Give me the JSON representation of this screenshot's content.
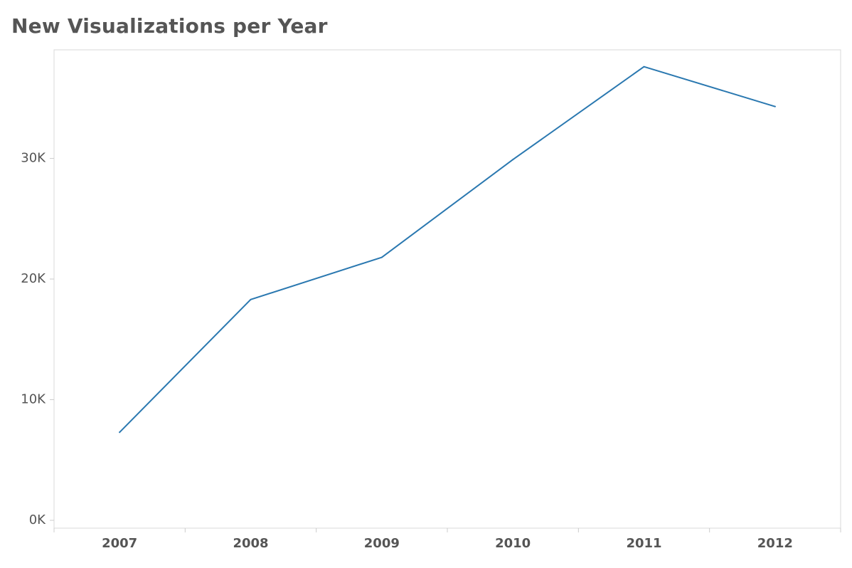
{
  "chart_data": {
    "type": "line",
    "title": "New Visualizations per Year",
    "xlabel": "",
    "ylabel": "",
    "categories": [
      "2007",
      "2008",
      "2009",
      "2010",
      "2011",
      "2012"
    ],
    "values": [
      7300,
      18300,
      21800,
      29900,
      37600,
      34300
    ],
    "ylim": [
      0,
      39000
    ],
    "yticks": [
      0,
      10000,
      20000,
      30000
    ],
    "ytick_labels": [
      "0K",
      "10K",
      "20K",
      "30K"
    ],
    "grid": false,
    "legend": "none",
    "series_color": "#2a78b0"
  }
}
